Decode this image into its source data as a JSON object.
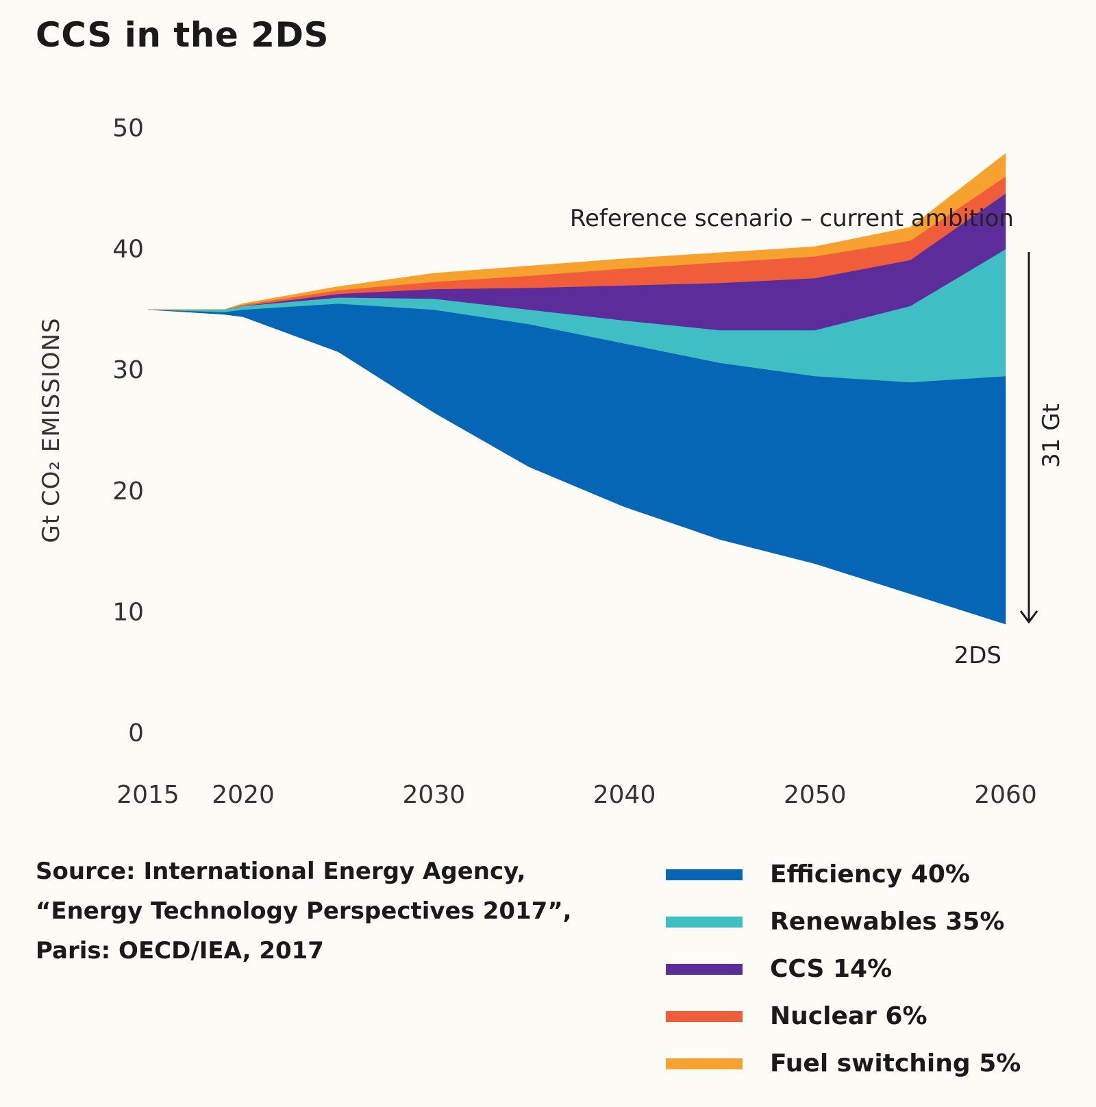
{
  "title": "CCS in the 2DS",
  "source": {
    "line1": "Source: International Energy Agency,",
    "line2": "“Energy Technology Perspectives 2017”,",
    "line3": "Paris: OECD/IEA, 2017"
  },
  "chart_data": {
    "type": "area",
    "title": "CCS in the 2DS",
    "ylabel": "Gt CO₂ EMISSIONS",
    "xlabel": "",
    "ylim": [
      0,
      50
    ],
    "yticks": [
      0,
      10,
      20,
      30,
      40,
      50
    ],
    "xlim": [
      2015,
      2060
    ],
    "xticks": [
      2015,
      2020,
      2030,
      2040,
      2050,
      2060
    ],
    "x": [
      2015,
      2019,
      2020,
      2025,
      2030,
      2035,
      2040,
      2045,
      2050,
      2055,
      2060
    ],
    "baseline_2ds": [
      35,
      34.6,
      34.4,
      31.5,
      26.5,
      22,
      18.7,
      16,
      14,
      11.5,
      9
    ],
    "series": [
      {
        "name": "Efficiency 40%",
        "color": "#0566b5",
        "values": [
          0,
          0.2,
          0.6,
          4.0,
          8.5,
          11.8,
          13.5,
          14.6,
          15.5,
          17.5,
          20.5
        ]
      },
      {
        "name": "Renewables 35%",
        "color": "#3fbfc4",
        "values": [
          0,
          0.2,
          0.3,
          0.5,
          0.9,
          1.2,
          1.9,
          2.7,
          3.8,
          6.3,
          10.5
        ]
      },
      {
        "name": "CCS 14%",
        "color": "#5b2c9a",
        "values": [
          0,
          0,
          0,
          0.3,
          0.8,
          1.8,
          2.9,
          3.9,
          4.3,
          3.8,
          4.6
        ]
      },
      {
        "name": "Nuclear 6%",
        "color": "#f05d3a",
        "values": [
          0,
          0,
          0.1,
          0.3,
          0.6,
          1.0,
          1.4,
          1.7,
          1.8,
          1.6,
          1.4
        ]
      },
      {
        "name": "Fuel switching 5%",
        "color": "#f7a12f",
        "values": [
          0,
          0,
          0.1,
          0.3,
          0.7,
          0.8,
          0.8,
          0.8,
          0.8,
          1.1,
          1.9
        ]
      }
    ],
    "annotations": {
      "reference": "Reference scenario – current ambition",
      "scenario": "2DS",
      "gap": "31 Gt"
    }
  }
}
